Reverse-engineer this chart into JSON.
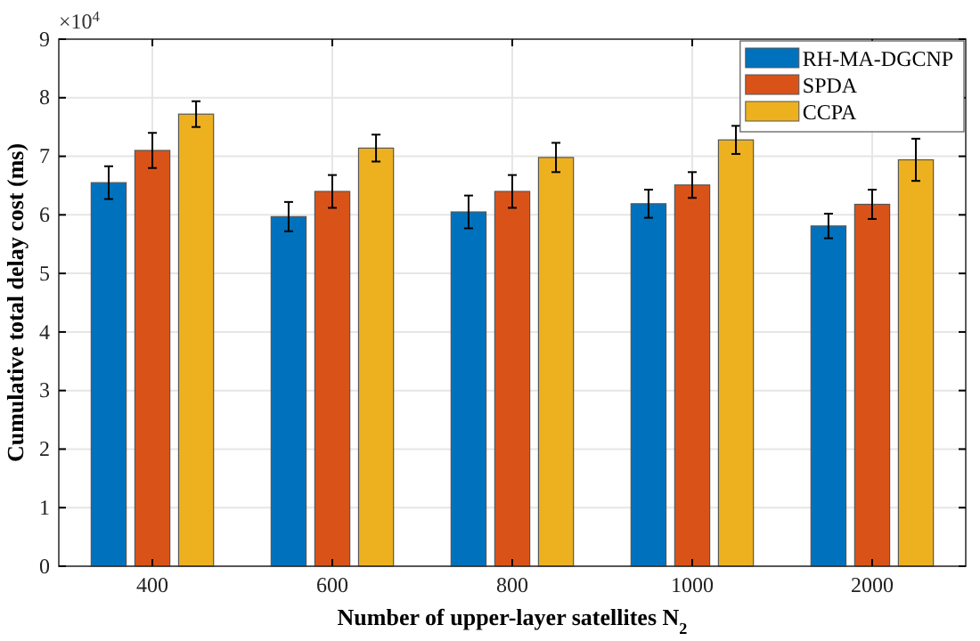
{
  "chart_data": {
    "type": "bar",
    "xlabel": "Number of upper-layer satellites N$_{2}$",
    "ylabel": "Cumulative total delay cost (ms)",
    "annotations": [
      "×10$^{4}$"
    ],
    "categories": [
      "400",
      "600",
      "800",
      "1000",
      "2000"
    ],
    "series": [
      {
        "name": "RH-MA-DGCNP",
        "color": "#0072bd",
        "values": [
          6.55,
          5.97,
          6.05,
          6.19,
          5.81
        ],
        "errors": [
          0.28,
          0.25,
          0.28,
          0.24,
          0.21
        ]
      },
      {
        "name": "SPDA",
        "color": "#d95319",
        "values": [
          7.1,
          6.4,
          6.4,
          6.51,
          6.18
        ],
        "errors": [
          0.3,
          0.28,
          0.28,
          0.22,
          0.25
        ]
      },
      {
        "name": "CCPA",
        "color": "#edb120",
        "values": [
          7.72,
          7.14,
          6.98,
          7.28,
          6.94
        ],
        "errors": [
          0.22,
          0.23,
          0.25,
          0.24,
          0.36
        ]
      }
    ],
    "ylim": [
      0,
      9
    ],
    "yticks": [
      0,
      1,
      2,
      3,
      4,
      5,
      6,
      7,
      8,
      9
    ],
    "grid": true,
    "legend": "top right"
  }
}
